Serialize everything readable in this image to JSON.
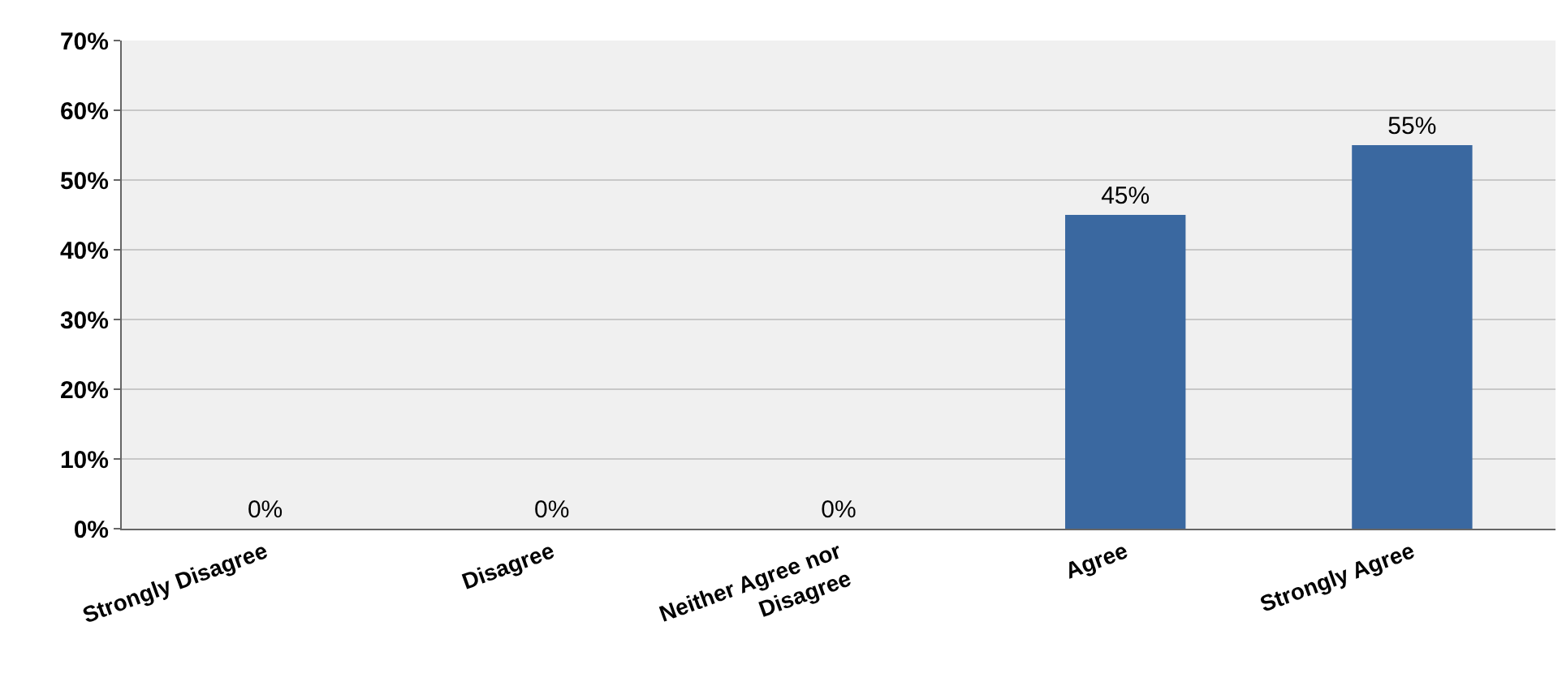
{
  "chart_data": {
    "type": "bar",
    "categories": [
      "Strongly Disagree",
      "Disagree",
      "Neither Agree nor\nDisagree",
      "Agree",
      "Strongly Agree"
    ],
    "values": [
      0,
      0,
      0,
      45,
      55
    ],
    "value_labels": [
      "0%",
      "0%",
      "0%",
      "45%",
      "55%"
    ],
    "color": "#3a68a0",
    "ylim": [
      0,
      70
    ],
    "yticks": [
      {
        "value": 0,
        "label": "0%"
      },
      {
        "value": 10,
        "label": "10%"
      },
      {
        "value": 20,
        "label": "20%"
      },
      {
        "value": 30,
        "label": "30%"
      },
      {
        "value": 40,
        "label": "40%"
      },
      {
        "value": 50,
        "label": "50%"
      },
      {
        "value": 60,
        "label": "60%"
      },
      {
        "value": 70,
        "label": "70%"
      }
    ],
    "grid": "y",
    "legend": false
  }
}
